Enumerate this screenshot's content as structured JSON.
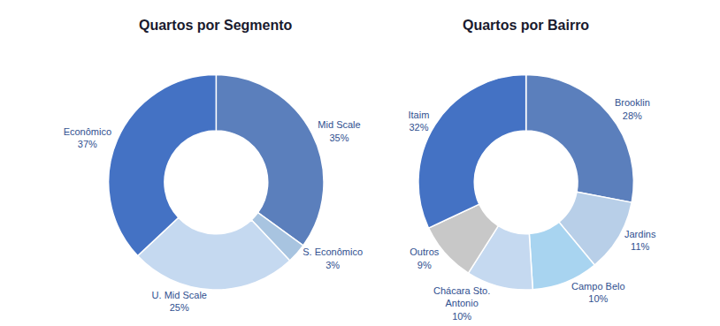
{
  "chart_data": [
    {
      "type": "pie",
      "title": "Quartos por Segmento",
      "categories": [
        "Mid Scale",
        "S. Econômico",
        "U. Mid Scale",
        "Econômico"
      ],
      "values": [
        35,
        3,
        25,
        37
      ],
      "value_labels": [
        "35%",
        "3%",
        "25%",
        "37%"
      ],
      "colors": [
        "#5b7fbc",
        "#a8c4e0",
        "#c5d9f0",
        "#4472c4"
      ],
      "data_labels": true
    },
    {
      "type": "pie",
      "title": "Quartos por Bairro",
      "categories": [
        "Brooklin",
        "Jardins",
        "Campo Belo",
        "Chácara Sto.\nAntonio",
        "Outros",
        "Itaim"
      ],
      "values": [
        28,
        11,
        10,
        10,
        9,
        32
      ],
      "value_labels": [
        "28%",
        "11%",
        "10%",
        "10%",
        "9%",
        "32%"
      ],
      "colors": [
        "#5b7fbc",
        "#b8cfe8",
        "#a8d4f0",
        "#c5d9f0",
        "#c8c8c8",
        "#4472c4"
      ],
      "data_labels": true
    }
  ]
}
